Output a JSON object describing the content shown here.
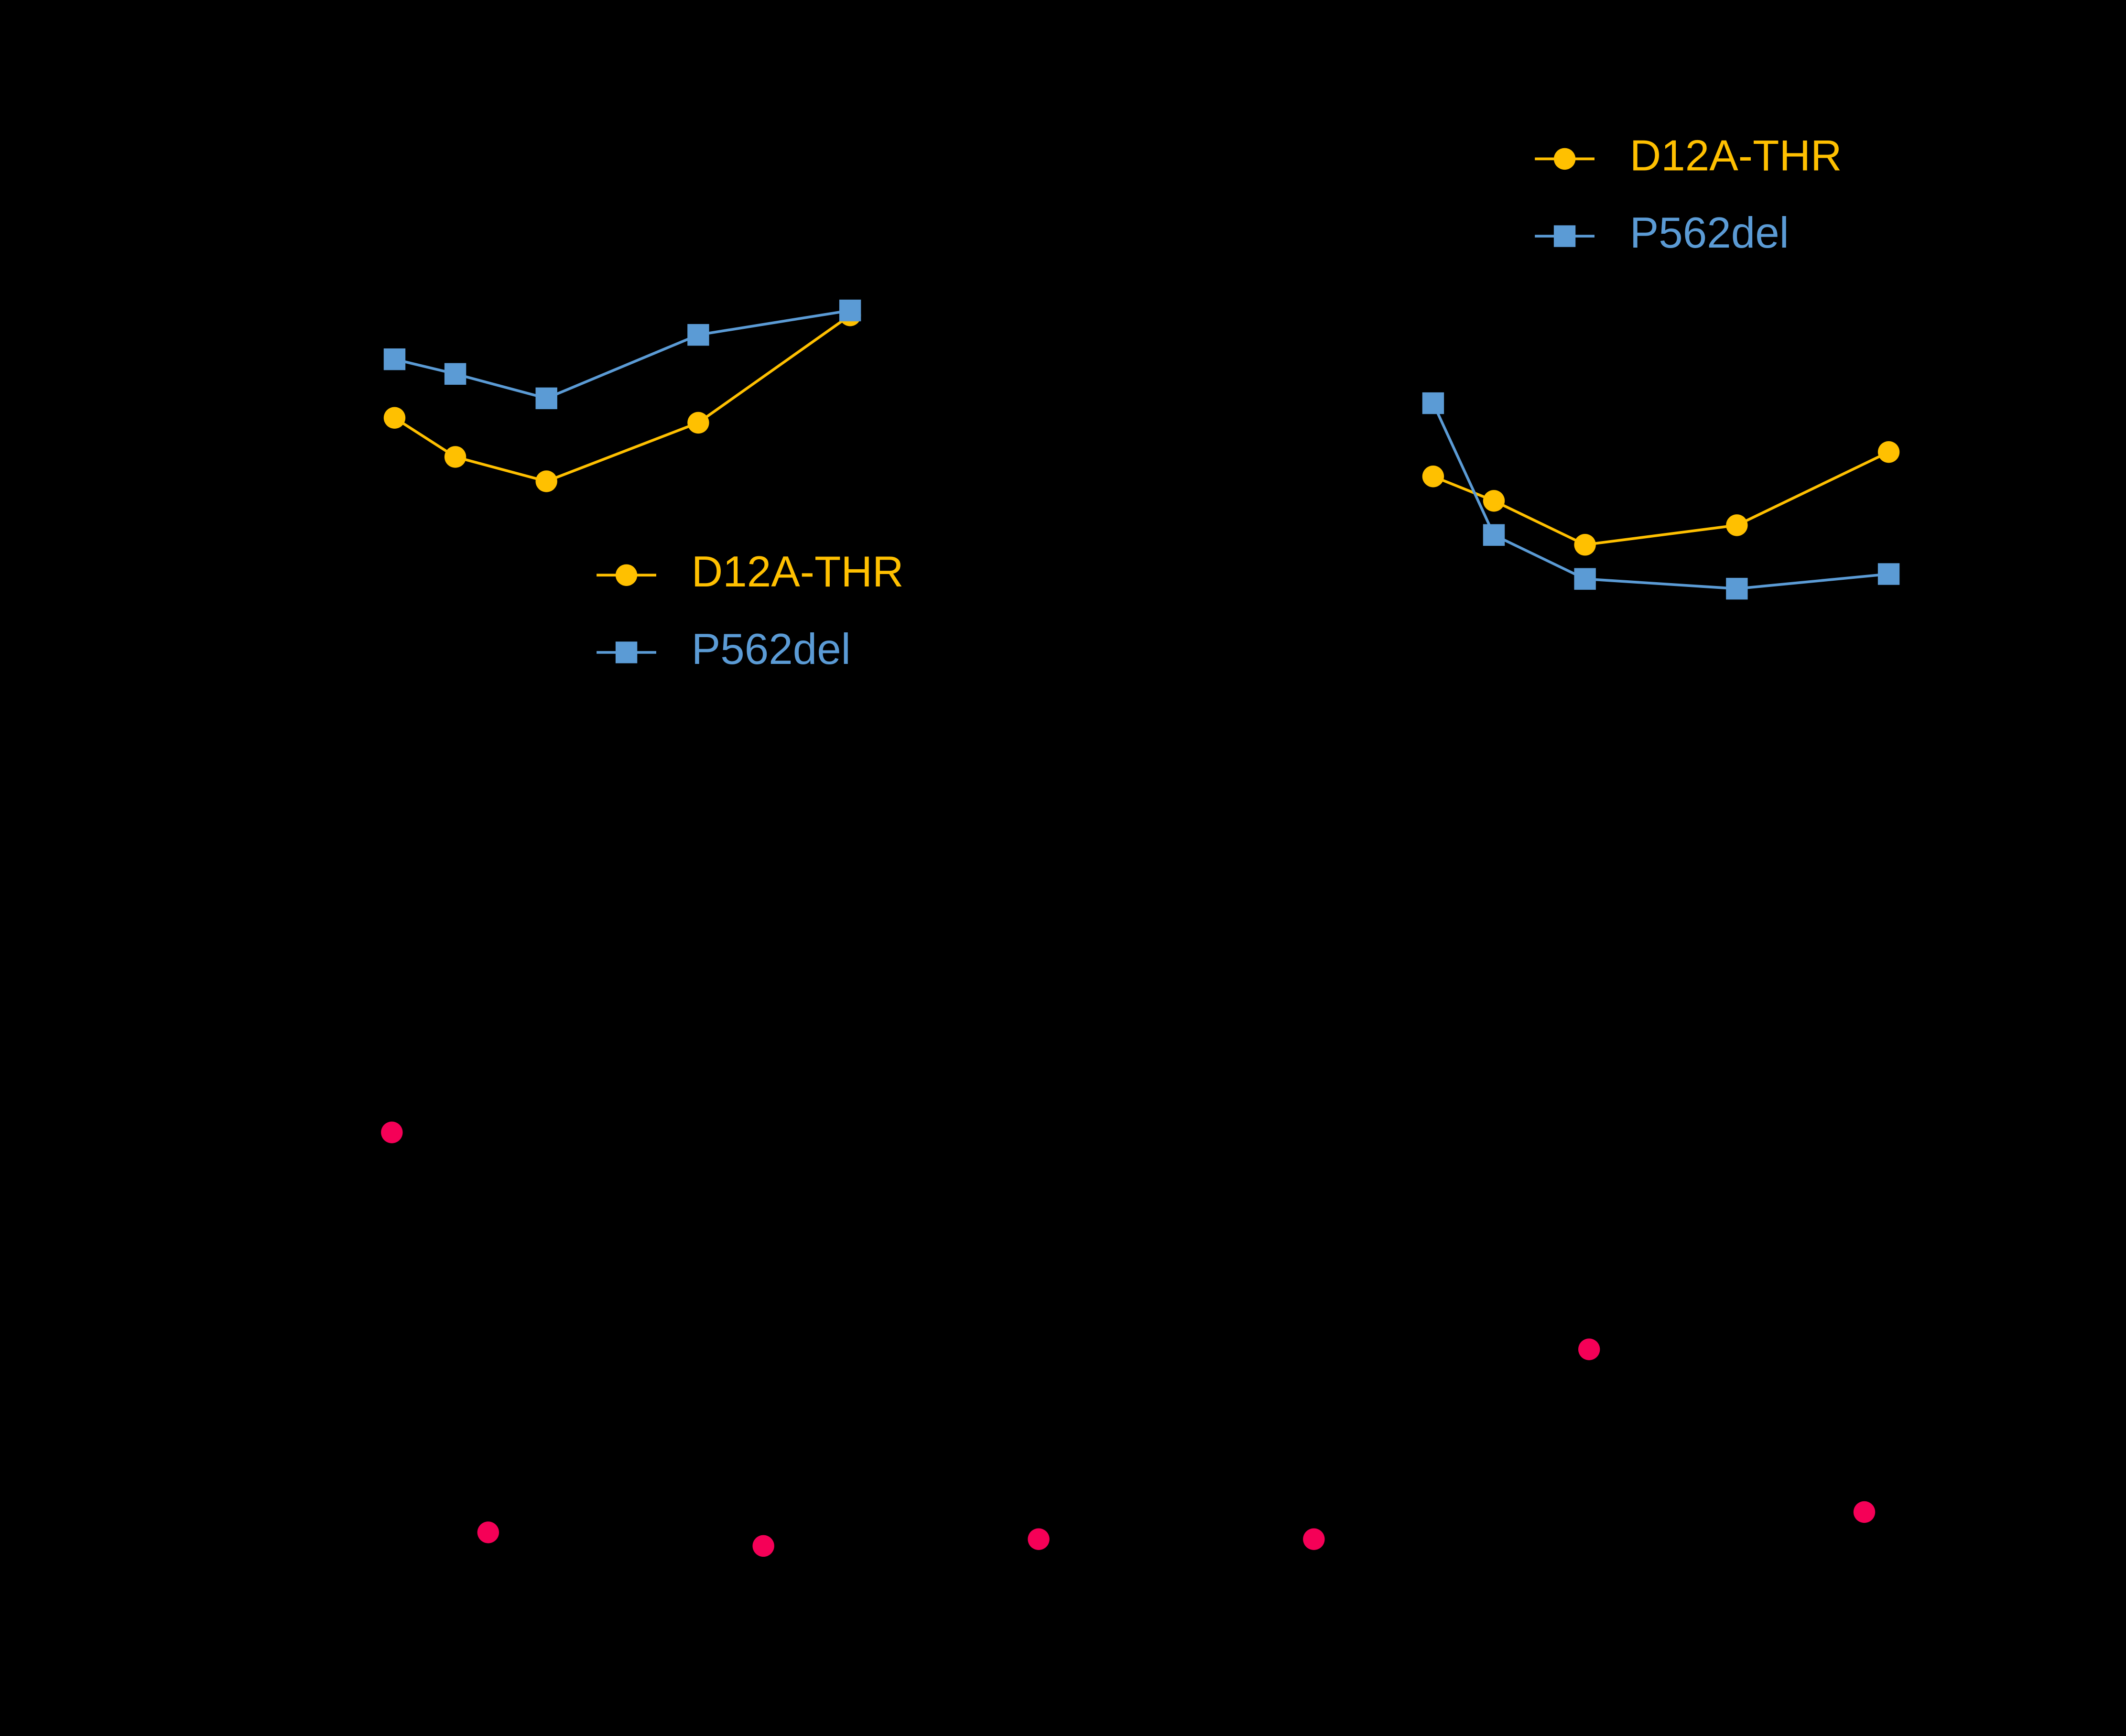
{
  "chart_data": [
    {
      "type": "line",
      "x": [
        0,
        2,
        5,
        10,
        15
      ],
      "xlim": [
        0,
        15
      ],
      "ylim": [
        0,
        100
      ],
      "legend": "center",
      "series": [
        {
          "name": "D12A-THR",
          "color": "#ffc000",
          "marker": "circle",
          "values": [
            70,
            62,
            57,
            69,
            91
          ]
        },
        {
          "name": "P562del",
          "color": "#5b9bd5",
          "marker": "square",
          "values": [
            82,
            79,
            74,
            87,
            92
          ]
        }
      ]
    },
    {
      "type": "line",
      "x": [
        0,
        2,
        5,
        10,
        15
      ],
      "xlim": [
        0,
        15
      ],
      "ylim": [
        0,
        100
      ],
      "legend": "upper right",
      "series": [
        {
          "name": "D12A-THR",
          "color": "#ffc000",
          "marker": "circle",
          "values": [
            58,
            53,
            44,
            48,
            63
          ]
        },
        {
          "name": "P562del",
          "color": "#5b9bd5",
          "marker": "square",
          "values": [
            73,
            46,
            37,
            35,
            38
          ]
        }
      ]
    },
    {
      "type": "scatter",
      "x": [
        0,
        0.35,
        1.35,
        2.35,
        3.35,
        4.35,
        5.35
      ],
      "xlim": [
        0,
        5.35
      ],
      "ylim": [
        0,
        100
      ],
      "color": "#f50057",
      "values": [
        73,
        14,
        12,
        13,
        13,
        41,
        17
      ]
    }
  ]
}
